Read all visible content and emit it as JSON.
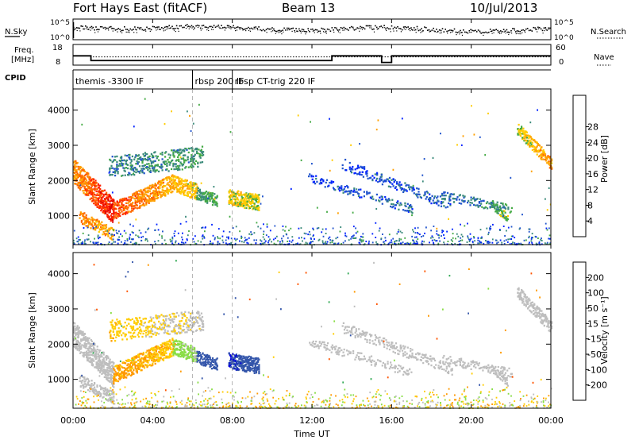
{
  "header": {
    "station": "Fort Hays East (fitACF)",
    "beam": "Beam 13",
    "date": "10/Jul/2013"
  },
  "panels": {
    "nsky_label": "N.Sky",
    "nsearch_label": "N.Search",
    "freq_label_1": "Freq.",
    "freq_label_2": "[MHz]",
    "nave_label": "Nave",
    "cpid_label": "CPID",
    "nsky_ticks": [
      "10^5",
      "10^0"
    ],
    "nsearch_ticks": [
      "10^5",
      "10^0"
    ],
    "freq_ticks": [
      "18",
      "8"
    ],
    "nave_ticks": [
      "60",
      "0"
    ]
  },
  "cpid": [
    {
      "start": 0.0,
      "label": "themis -3300 IF"
    },
    {
      "start": 6.0,
      "label": "rbsp 200 IF"
    },
    {
      "start": 8.0,
      "label": "rbsp CT-trig 220 IF"
    }
  ],
  "colors": {
    "power": [
      "#0022ff",
      "#2255cc",
      "#3a8a7a",
      "#44aa44",
      "#ffcc00",
      "#ffa000",
      "#ff6600",
      "#ff2200",
      "#dd0000"
    ],
    "velocity": [
      "#0000dd",
      "#3355aa",
      "#33aa55",
      "#88dd44",
      "#bebebe",
      "#ffcc00",
      "#ff9900",
      "#ff5500",
      "#ee0000"
    ]
  },
  "chart_data": [
    {
      "type": "heatmap",
      "panel": "power",
      "ylabel": "Slant Range [km]",
      "xlim": [
        0,
        24
      ],
      "ylim": [
        180,
        4600
      ],
      "yticks": [
        1000,
        2000,
        3000,
        4000
      ],
      "colorbar_label": "Power [dB]",
      "colorbar_ticks": [
        "4",
        "8",
        "12",
        "16",
        "20",
        "24",
        "28"
      ],
      "structures": [
        {
          "start": 0.0,
          "end": 2.0,
          "r1": 2300,
          "r2": 1150,
          "width": 700,
          "v1": 22,
          "v2": 30,
          "density": 0.85
        },
        {
          "start": 2.0,
          "end": 5.0,
          "r1": 1150,
          "r2": 1950,
          "width": 500,
          "v1": 26,
          "v2": 20,
          "density": 0.8
        },
        {
          "start": 5.0,
          "end": 6.2,
          "r1": 1950,
          "r2": 1700,
          "width": 450,
          "v1": 20,
          "v2": 18,
          "density": 0.75
        },
        {
          "start": 0.3,
          "end": 2.0,
          "r1": 1000,
          "r2": 500,
          "width": 350,
          "v1": 24,
          "v2": 20,
          "density": 0.6
        },
        {
          "start": 1.8,
          "end": 6.5,
          "r1": 2400,
          "r2": 2700,
          "width": 600,
          "v1": 10,
          "v2": 12,
          "density": 0.35
        },
        {
          "start": 6.2,
          "end": 7.2,
          "r1": 1650,
          "r2": 1450,
          "width": 350,
          "v1": 12,
          "v2": 14,
          "density": 0.7
        },
        {
          "start": 7.8,
          "end": 9.3,
          "r1": 1550,
          "r2": 1400,
          "width": 450,
          "v1": 18,
          "v2": 16,
          "density": 0.9
        },
        {
          "start": 11.8,
          "end": 17.0,
          "r1": 2100,
          "r2": 1200,
          "width": 250,
          "v1": 6,
          "v2": 8,
          "density": 0.3
        },
        {
          "start": 13.5,
          "end": 19.0,
          "r1": 2500,
          "r2": 1300,
          "width": 300,
          "v1": 6,
          "v2": 8,
          "density": 0.3
        },
        {
          "start": 18.5,
          "end": 22.0,
          "r1": 1600,
          "r2": 1200,
          "width": 250,
          "v1": 8,
          "v2": 12,
          "density": 0.35
        },
        {
          "start": 21.0,
          "end": 21.8,
          "r1": 1350,
          "r2": 950,
          "width": 250,
          "v1": 12,
          "v2": 16,
          "density": 0.6
        },
        {
          "start": 22.3,
          "end": 24.0,
          "r1": 3500,
          "r2": 2500,
          "width": 350,
          "v1": 16,
          "v2": 22,
          "density": 0.75
        }
      ]
    },
    {
      "type": "heatmap",
      "panel": "velocity",
      "ylabel": "Slant Range [km]",
      "xlabel": "Time UT",
      "xlim": [
        0,
        24
      ],
      "xticks": [
        "00:00",
        "04:00",
        "08:00",
        "12:00",
        "16:00",
        "20:00",
        "00:00"
      ],
      "ylim": [
        180,
        4600
      ],
      "yticks": [
        1000,
        2000,
        3000,
        4000
      ],
      "colorbar_label": "Velocity [m s⁻¹]",
      "colorbar_ticks": [
        "200",
        "100",
        "50",
        "15",
        "-15",
        "-50",
        "-100",
        "-200"
      ],
      "structures": [
        {
          "start": 0.0,
          "end": 2.0,
          "r1": 2300,
          "r2": 1150,
          "width": 700,
          "v1": 0,
          "v2": 0,
          "density": 0.85
        },
        {
          "start": 2.0,
          "end": 5.0,
          "r1": 1150,
          "r2": 1950,
          "width": 500,
          "v1": -60,
          "v2": -40,
          "density": 0.8
        },
        {
          "start": 5.0,
          "end": 6.2,
          "r1": 1950,
          "r2": 1700,
          "width": 450,
          "v1": 30,
          "v2": 20,
          "density": 0.75
        },
        {
          "start": 0.3,
          "end": 2.0,
          "r1": 1000,
          "r2": 500,
          "width": 350,
          "v1": 0,
          "v2": 0,
          "density": 0.6
        },
        {
          "start": 1.8,
          "end": 6.5,
          "r1": 2400,
          "r2": 2700,
          "width": 600,
          "v1": -40,
          "v2": 0,
          "density": 0.35
        },
        {
          "start": 6.2,
          "end": 7.2,
          "r1": 1650,
          "r2": 1450,
          "width": 350,
          "v1": 180,
          "v2": 150,
          "density": 0.7
        },
        {
          "start": 7.8,
          "end": 9.3,
          "r1": 1550,
          "r2": 1400,
          "width": 450,
          "v1": 200,
          "v2": 170,
          "density": 0.9
        },
        {
          "start": 11.8,
          "end": 17.0,
          "r1": 2100,
          "r2": 1200,
          "width": 250,
          "v1": 0,
          "v2": 0,
          "density": 0.3
        },
        {
          "start": 13.5,
          "end": 19.0,
          "r1": 2500,
          "r2": 1300,
          "width": 300,
          "v1": 0,
          "v2": 0,
          "density": 0.3
        },
        {
          "start": 18.5,
          "end": 22.0,
          "r1": 1600,
          "r2": 1200,
          "width": 250,
          "v1": 0,
          "v2": 0,
          "density": 0.35
        },
        {
          "start": 21.0,
          "end": 21.8,
          "r1": 1350,
          "r2": 950,
          "width": 250,
          "v1": 0,
          "v2": 0,
          "density": 0.6
        },
        {
          "start": 22.3,
          "end": 24.0,
          "r1": 3500,
          "r2": 2500,
          "width": 350,
          "v1": 0,
          "v2": 0,
          "density": 0.75
        }
      ]
    }
  ],
  "frequency": [
    {
      "start": 0.0,
      "end": 0.9,
      "value": 12.5
    },
    {
      "start": 0.9,
      "end": 13.0,
      "value": 10.2
    },
    {
      "start": 13.0,
      "end": 15.5,
      "value": 12.5
    },
    {
      "start": 15.5,
      "end": 16.0,
      "value": 9.3
    },
    {
      "start": 16.0,
      "end": 24.0,
      "value": 12.5
    }
  ],
  "nave": 24
}
